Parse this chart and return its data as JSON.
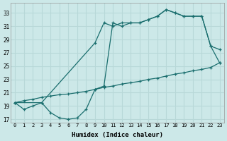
{
  "xlabel": "Humidex (Indice chaleur)",
  "background_color": "#cce8e8",
  "grid_color": "#b8d8d8",
  "line_color": "#1a6e6e",
  "xlim": [
    -0.5,
    23.5
  ],
  "ylim": [
    16.5,
    34.5
  ],
  "yticks": [
    17,
    19,
    21,
    23,
    25,
    27,
    29,
    31,
    33
  ],
  "xticks": [
    0,
    1,
    2,
    3,
    4,
    5,
    6,
    7,
    8,
    9,
    10,
    11,
    12,
    13,
    14,
    15,
    16,
    17,
    18,
    19,
    20,
    21,
    22,
    23
  ],
  "line_zigzag_x": [
    0,
    1,
    2,
    3,
    4,
    5,
    6,
    7,
    8,
    9,
    10,
    11,
    12,
    13,
    14,
    15,
    16,
    17,
    18,
    19,
    20,
    21,
    22,
    23
  ],
  "line_zigzag_y": [
    19.5,
    18.5,
    19.0,
    19.5,
    18.0,
    17.2,
    17.0,
    17.2,
    18.5,
    21.5,
    22.0,
    31.5,
    31.0,
    31.5,
    31.5,
    32.0,
    32.5,
    33.5,
    33.0,
    32.5,
    32.5,
    32.5,
    28.0,
    27.5
  ],
  "line_diag_x": [
    0,
    1,
    2,
    3,
    4,
    5,
    6,
    7,
    8,
    9,
    10,
    11,
    12,
    13,
    14,
    15,
    16,
    17,
    18,
    19,
    20,
    21,
    22,
    23
  ],
  "line_diag_y": [
    19.5,
    19.8,
    20.0,
    20.3,
    20.5,
    20.7,
    20.8,
    21.0,
    21.2,
    21.5,
    21.8,
    22.0,
    22.3,
    22.5,
    22.7,
    23.0,
    23.2,
    23.5,
    23.8,
    24.0,
    24.3,
    24.5,
    24.8,
    25.5
  ],
  "line_upper_x": [
    0,
    3,
    9,
    10,
    11,
    12,
    13,
    14,
    15,
    16,
    17,
    18,
    19,
    20,
    21,
    22,
    23
  ],
  "line_upper_y": [
    19.5,
    19.5,
    28.5,
    31.5,
    31.0,
    31.5,
    31.5,
    31.5,
    32.0,
    32.5,
    33.5,
    33.0,
    32.5,
    32.5,
    32.5,
    28.0,
    25.5
  ]
}
